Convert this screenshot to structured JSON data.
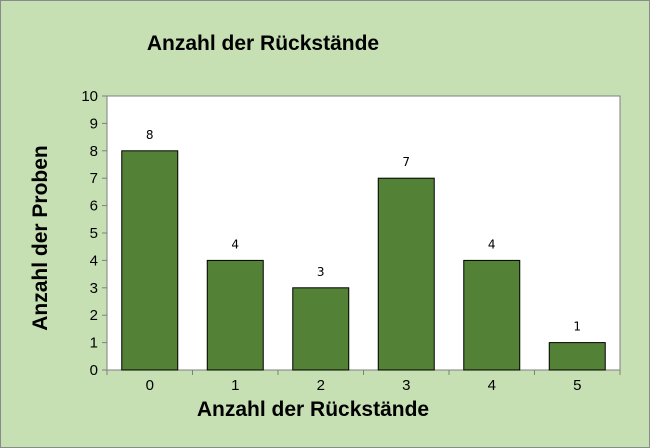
{
  "chart_data": {
    "type": "bar",
    "title": "Anzahl der Rückstände",
    "xlabel": "Anzahl der Rückstände",
    "ylabel": "Anzahl der Proben",
    "categories": [
      "0",
      "1",
      "2",
      "3",
      "4",
      "5"
    ],
    "values": [
      8,
      4,
      3,
      7,
      4,
      1
    ],
    "data_labels": [
      "8",
      "4",
      "3",
      "7",
      "4",
      "1"
    ],
    "yticks": [
      "0",
      "1",
      "2",
      "3",
      "4",
      "5",
      "6",
      "7",
      "8",
      "9",
      "10"
    ],
    "ylim": [
      0,
      10
    ],
    "grid": false,
    "legend": "none",
    "colors": {
      "bar": "#538135",
      "plot_bg": "#ffffff",
      "chart_bg": "#c6e0b4"
    }
  }
}
